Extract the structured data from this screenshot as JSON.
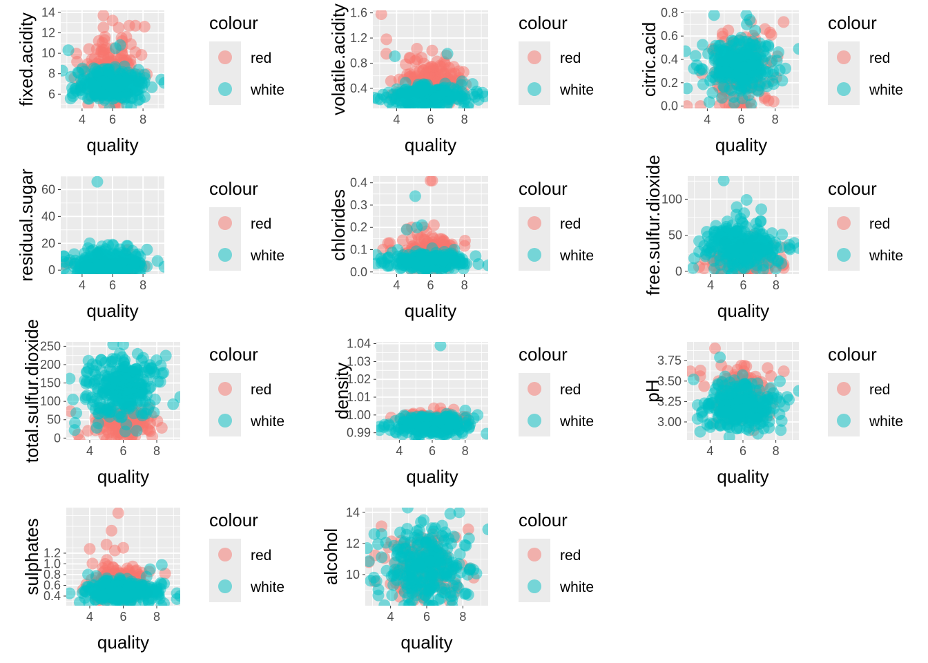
{
  "chart_data": [
    {
      "type": "scatter",
      "xlabel": "quality",
      "ylabel": "fixed.acidity",
      "xlim": [
        2.6,
        9.4
      ],
      "ylim": [
        4.6,
        14.2
      ],
      "xticks": [
        4,
        6,
        8
      ],
      "yticks": [
        6,
        8,
        10,
        12,
        14
      ],
      "yticklabels": [
        "6",
        "8",
        "10",
        "12",
        "14"
      ],
      "legend_title": "colour",
      "series": [
        {
          "name": "red",
          "color": "#F8766D"
        },
        {
          "name": "white",
          "color": "#00BFC4"
        }
      ],
      "red_cloud": {
        "xmean": 5.9,
        "xsd": 0.9,
        "ymean": 8.3,
        "ysd": 1.4
      },
      "white_cloud": {
        "xmean": 5.9,
        "xsd": 1.1,
        "ymean": 6.9,
        "ysd": 0.8
      },
      "red_points": [
        [
          5.4,
          13.7
        ],
        [
          6.0,
          13.2
        ],
        [
          7.1,
          12.7
        ],
        [
          7.5,
          12.7
        ],
        [
          8.1,
          12.6
        ],
        [
          6.4,
          12.5
        ],
        [
          5.5,
          11.6
        ],
        [
          6.9,
          11.6
        ],
        [
          5.1,
          11.2
        ],
        [
          7.2,
          10.9
        ],
        [
          5.6,
          10.5
        ],
        [
          7.5,
          10.1
        ],
        [
          4.0,
          8.4
        ],
        [
          3.5,
          7.6
        ],
        [
          4.4,
          5.0
        ]
      ],
      "white_points": [
        [
          3.1,
          10.3
        ],
        [
          9.4,
          7.1
        ],
        [
          2.7,
          8.3
        ],
        [
          3.4,
          5.8
        ],
        [
          6.2,
          10.5
        ],
        [
          6.5,
          10.8
        ]
      ]
    },
    {
      "type": "scatter",
      "xlabel": "quality",
      "ylabel": "volatile.acidity",
      "xlim": [
        2.6,
        9.4
      ],
      "ylim": [
        0.08,
        1.64
      ],
      "xticks": [
        4,
        6,
        8
      ],
      "yticks": [
        0.4,
        0.8,
        1.2,
        1.6
      ],
      "yticklabels": [
        "0.4",
        "0.8",
        "1.2",
        "1.6"
      ],
      "legend_title": "colour",
      "series": [
        {
          "name": "red",
          "color": "#F8766D"
        },
        {
          "name": "white",
          "color": "#00BFC4"
        }
      ],
      "red_cloud": {
        "xmean": 5.9,
        "xsd": 0.9,
        "ymean": 0.5,
        "ysd": 0.17
      },
      "white_cloud": {
        "xmean": 5.9,
        "xsd": 1.1,
        "ymean": 0.28,
        "ysd": 0.09
      },
      "red_points": [
        [
          3.1,
          1.58
        ],
        [
          3.4,
          1.18
        ],
        [
          5.2,
          1.03
        ],
        [
          6.1,
          1.0
        ],
        [
          4.8,
          0.88
        ],
        [
          7.6,
          0.45
        ]
      ],
      "white_points": [
        [
          3.9,
          0.91
        ],
        [
          7.0,
          0.95
        ],
        [
          2.7,
          0.25
        ],
        [
          9.2,
          0.27
        ],
        [
          8.5,
          0.3
        ],
        [
          3.2,
          0.3
        ]
      ]
    },
    {
      "type": "scatter",
      "xlabel": "quality",
      "ylabel": "citric.acid",
      "xlim": [
        2.6,
        9.4
      ],
      "ylim": [
        -0.02,
        0.82
      ],
      "xticks": [
        4,
        6,
        8
      ],
      "yticks": [
        0.0,
        0.2,
        0.4,
        0.6,
        0.8
      ],
      "yticklabels": [
        "0.0",
        "0.2",
        "0.4",
        "0.6",
        "0.8"
      ],
      "legend_title": "colour",
      "series": [
        {
          "name": "red",
          "color": "#F8766D"
        },
        {
          "name": "white",
          "color": "#00BFC4"
        }
      ],
      "red_cloud": {
        "xmean": 5.9,
        "xsd": 0.9,
        "ymean": 0.27,
        "ysd": 0.18
      },
      "white_cloud": {
        "xmean": 5.9,
        "xsd": 1.1,
        "ymean": 0.34,
        "ysd": 0.12
      },
      "red_points": [
        [
          2.8,
          0.0
        ],
        [
          3.6,
          0.0
        ],
        [
          8.5,
          0.72
        ],
        [
          7.4,
          0.66
        ],
        [
          7.7,
          0.63
        ],
        [
          5.3,
          0.0
        ],
        [
          6.1,
          0.0
        ]
      ],
      "white_points": [
        [
          2.7,
          0.47
        ],
        [
          9.4,
          0.49
        ],
        [
          3.3,
          0.43
        ],
        [
          4.4,
          0.78
        ],
        [
          6.3,
          0.78
        ],
        [
          6.5,
          0.74
        ]
      ]
    },
    {
      "type": "scatter",
      "xlabel": "quality",
      "ylabel": "residual.sugar",
      "xlim": [
        2.6,
        9.4
      ],
      "ylim": [
        -3,
        70
      ],
      "xticks": [
        4,
        6,
        8
      ],
      "yticks": [
        0,
        20,
        40,
        60
      ],
      "yticklabels": [
        "0",
        "20",
        "40",
        "60"
      ],
      "legend_title": "colour",
      "series": [
        {
          "name": "red",
          "color": "#F8766D"
        },
        {
          "name": "white",
          "color": "#00BFC4"
        }
      ],
      "red_cloud": {
        "xmean": 5.9,
        "xsd": 0.9,
        "ymean": 2.5,
        "ysd": 1.3
      },
      "white_cloud": {
        "xmean": 5.9,
        "xsd": 1.1,
        "ymean": 6.0,
        "ysd": 5.0
      },
      "red_points": [
        [
          2.8,
          4.0
        ],
        [
          3.2,
          5.5
        ],
        [
          7.0,
          15.0
        ],
        [
          5.0,
          12.5
        ]
      ],
      "white_points": [
        [
          5.0,
          65.8
        ],
        [
          9.4,
          2.5
        ],
        [
          3.2,
          7.5
        ],
        [
          4.5,
          20.0
        ],
        [
          6.0,
          19.0
        ],
        [
          7.0,
          18.0
        ]
      ]
    },
    {
      "type": "scatter",
      "xlabel": "quality",
      "ylabel": "chlorides",
      "xlim": [
        2.6,
        9.4
      ],
      "ylim": [
        -0.01,
        0.43
      ],
      "xticks": [
        4,
        6,
        8
      ],
      "yticks": [
        0.0,
        0.1,
        0.2,
        0.3,
        0.4
      ],
      "yticklabels": [
        "0.0",
        "0.1",
        "0.2",
        "0.3",
        "0.4"
      ],
      "legend_title": "colour",
      "series": [
        {
          "name": "red",
          "color": "#F8766D"
        },
        {
          "name": "white",
          "color": "#00BFC4"
        }
      ],
      "red_cloud": {
        "xmean": 5.9,
        "xsd": 0.9,
        "ymean": 0.085,
        "ysd": 0.035
      },
      "white_cloud": {
        "xmean": 5.9,
        "xsd": 1.1,
        "ymean": 0.045,
        "ysd": 0.018
      },
      "red_points": [
        [
          6.0,
          0.41
        ],
        [
          6.1,
          0.41
        ],
        [
          6.2,
          0.21
        ],
        [
          3.6,
          0.13
        ],
        [
          4.9,
          0.2
        ],
        [
          3.2,
          0.1
        ],
        [
          5.6,
          0.2
        ],
        [
          7.3,
          0.1
        ]
      ],
      "white_points": [
        [
          5.1,
          0.34
        ],
        [
          4.6,
          0.19
        ],
        [
          5.2,
          0.2
        ],
        [
          5.5,
          0.21
        ],
        [
          9.4,
          0.03
        ],
        [
          3.1,
          0.04
        ],
        [
          7.4,
          0.1
        ]
      ]
    },
    {
      "type": "scatter",
      "xlabel": "quality",
      "ylabel": "free.sulfur.dioxide",
      "xlim": [
        2.6,
        9.4
      ],
      "ylim": [
        -4,
        132
      ],
      "xticks": [
        4,
        6,
        8
      ],
      "yticks": [
        0,
        50,
        100
      ],
      "yticklabels": [
        "0",
        "50",
        "100"
      ],
      "legend_title": "colour",
      "series": [
        {
          "name": "red",
          "color": "#F8766D"
        },
        {
          "name": "white",
          "color": "#00BFC4"
        }
      ],
      "red_cloud": {
        "xmean": 5.9,
        "xsd": 0.9,
        "ymean": 15,
        "ysd": 9
      },
      "white_cloud": {
        "xmean": 5.9,
        "xsd": 1.1,
        "ymean": 34,
        "ysd": 16
      },
      "red_points": [
        [
          8.4,
          8
        ],
        [
          3.3,
          6
        ],
        [
          3.6,
          4
        ],
        [
          7.8,
          35
        ],
        [
          6.6,
          50
        ]
      ],
      "white_points": [
        [
          4.8,
          126
        ],
        [
          6.2,
          99
        ],
        [
          9.4,
          32
        ],
        [
          3.0,
          18
        ],
        [
          3.3,
          42
        ],
        [
          7.1,
          86
        ],
        [
          5.6,
          89
        ]
      ]
    },
    {
      "type": "scatter",
      "xlabel": "quality",
      "ylabel": "total.sulfur.dioxide",
      "xlim": [
        2.6,
        9.4
      ],
      "ylim": [
        -5,
        262
      ],
      "xticks": [
        4,
        6,
        8
      ],
      "yticks": [
        0,
        50,
        100,
        150,
        200,
        250
      ],
      "yticklabels": [
        "0",
        "50",
        "100",
        "150",
        "200",
        "250"
      ],
      "legend_title": "colour",
      "series": [
        {
          "name": "red",
          "color": "#F8766D"
        },
        {
          "name": "white",
          "color": "#00BFC4"
        }
      ],
      "red_cloud": {
        "xmean": 5.9,
        "xsd": 0.9,
        "ymean": 40,
        "ysd": 25
      },
      "white_cloud": {
        "xmean": 5.9,
        "xsd": 1.1,
        "ymean": 138,
        "ysd": 42
      },
      "red_points": [
        [
          8.3,
          28
        ],
        [
          3.3,
          10
        ],
        [
          3.9,
          20
        ],
        [
          7.6,
          40
        ],
        [
          6.5,
          35
        ]
      ],
      "white_points": [
        [
          2.8,
          162
        ],
        [
          9.4,
          112
        ],
        [
          3.0,
          105
        ],
        [
          3.2,
          68
        ],
        [
          5.4,
          255
        ],
        [
          6.0,
          255
        ],
        [
          8.4,
          178
        ],
        [
          3.1,
          22
        ]
      ]
    },
    {
      "type": "scatter",
      "xlabel": "quality",
      "ylabel": "density",
      "xlim": [
        2.6,
        9.4
      ],
      "ylim": [
        0.986,
        1.041
      ],
      "xticks": [
        4,
        6,
        8
      ],
      "yticks": [
        0.99,
        1.0,
        1.01,
        1.02,
        1.03,
        1.04
      ],
      "yticklabels": [
        "0.99",
        "1.00",
        "1.01",
        "1.02",
        "1.03",
        "1.04"
      ],
      "legend_title": "colour",
      "series": [
        {
          "name": "red",
          "color": "#F8766D"
        },
        {
          "name": "white",
          "color": "#00BFC4"
        }
      ],
      "red_cloud": {
        "xmean": 5.9,
        "xsd": 0.9,
        "ymean": 0.9967,
        "ysd": 0.0018
      },
      "white_cloud": {
        "xmean": 5.9,
        "xsd": 1.1,
        "ymean": 0.994,
        "ysd": 0.0029
      },
      "red_points": [
        [
          6.1,
          1.0037
        ],
        [
          6.5,
          1.0037
        ],
        [
          7.3,
          1.003
        ],
        [
          3.5,
          0.9985
        ]
      ],
      "white_points": [
        [
          6.5,
          1.039
        ],
        [
          9.3,
          0.9895
        ],
        [
          2.8,
          0.9915
        ],
        [
          3.1,
          0.9945
        ]
      ]
    },
    {
      "type": "scatter",
      "xlabel": "quality",
      "ylabel": "pH",
      "xlim": [
        2.6,
        9.4
      ],
      "ylim": [
        2.78,
        3.98
      ],
      "xticks": [
        4,
        6,
        8
      ],
      "yticks": [
        3.0,
        3.25,
        3.5,
        3.75
      ],
      "yticklabels": [
        "3.00",
        "3.25",
        "3.50",
        "3.75"
      ],
      "legend_title": "colour",
      "series": [
        {
          "name": "red",
          "color": "#F8766D"
        },
        {
          "name": "white",
          "color": "#00BFC4"
        }
      ],
      "red_cloud": {
        "xmean": 5.9,
        "xsd": 0.9,
        "ymean": 3.31,
        "ysd": 0.15
      },
      "white_cloud": {
        "xmean": 5.9,
        "xsd": 1.1,
        "ymean": 3.19,
        "ysd": 0.15
      },
      "red_points": [
        [
          4.3,
          3.9
        ],
        [
          2.8,
          3.62
        ],
        [
          3.4,
          3.56
        ],
        [
          5.9,
          3.69
        ],
        [
          6.2,
          3.68
        ],
        [
          7.5,
          3.66
        ]
      ],
      "white_points": [
        [
          4.6,
          3.79
        ],
        [
          9.4,
          3.38
        ],
        [
          3.0,
          3.52
        ],
        [
          3.4,
          2.88
        ],
        [
          8.3,
          2.9
        ]
      ]
    },
    {
      "type": "scatter",
      "xlabel": "quality",
      "ylabel": "sulphates",
      "xlim": [
        2.6,
        9.4
      ],
      "ylim": [
        0.22,
        2.05
      ],
      "xticks": [
        4,
        6,
        8
      ],
      "yticks": [
        0.4,
        0.6,
        0.8,
        1.0,
        1.2
      ],
      "yticklabels": [
        "0.4",
        "0.6",
        "0.8",
        "1.0",
        "1.2"
      ],
      "legend_title": "colour",
      "series": [
        {
          "name": "red",
          "color": "#F8766D"
        },
        {
          "name": "white",
          "color": "#00BFC4"
        }
      ],
      "red_cloud": {
        "xmean": 5.9,
        "xsd": 0.9,
        "ymean": 0.66,
        "ysd": 0.17
      },
      "white_cloud": {
        "xmean": 5.9,
        "xsd": 1.1,
        "ymean": 0.49,
        "ysd": 0.11
      },
      "red_points": [
        [
          5.7,
          1.95
        ],
        [
          5.3,
          1.62
        ],
        [
          5.0,
          1.36
        ],
        [
          4.0,
          1.28
        ],
        [
          6.0,
          1.3
        ],
        [
          5.5,
          1.25
        ],
        [
          8.5,
          0.82
        ],
        [
          3.8,
          0.62
        ]
      ],
      "white_points": [
        [
          3.9,
          0.8
        ],
        [
          9.4,
          0.4
        ],
        [
          2.8,
          0.45
        ],
        [
          3.4,
          0.28
        ],
        [
          8.3,
          0.98
        ],
        [
          7.6,
          0.9
        ]
      ]
    },
    {
      "type": "scatter",
      "xlabel": "quality",
      "ylabel": "alcohol",
      "xlim": [
        2.6,
        9.4
      ],
      "ylim": [
        8.0,
        14.3
      ],
      "xticks": [
        4,
        6,
        8
      ],
      "yticks": [
        10,
        12,
        14
      ],
      "yticklabels": [
        "10",
        "12",
        "14"
      ],
      "legend_title": "colour",
      "series": [
        {
          "name": "red",
          "color": "#F8766D"
        },
        {
          "name": "white",
          "color": "#00BFC4"
        }
      ],
      "red_cloud": {
        "xmean": 5.9,
        "xsd": 0.9,
        "ymean": 10.4,
        "ysd": 1.0
      },
      "white_cloud": {
        "xmean": 5.9,
        "xsd": 1.1,
        "ymean": 10.5,
        "ysd": 1.2
      },
      "red_points": [
        [
          3.5,
          13.1
        ],
        [
          2.8,
          10.8
        ],
        [
          4.0,
          9.4
        ],
        [
          8.3,
          12.9
        ],
        [
          7.6,
          12.4
        ],
        [
          8.6,
          9.8
        ]
      ],
      "white_points": [
        [
          2.7,
          11.7
        ],
        [
          3.1,
          12.6
        ],
        [
          3.5,
          12.6
        ],
        [
          9.4,
          12.9
        ],
        [
          2.9,
          9.6
        ],
        [
          7.8,
          14.0
        ],
        [
          7.3,
          13.9
        ],
        [
          8.3,
          8.7
        ]
      ]
    }
  ]
}
